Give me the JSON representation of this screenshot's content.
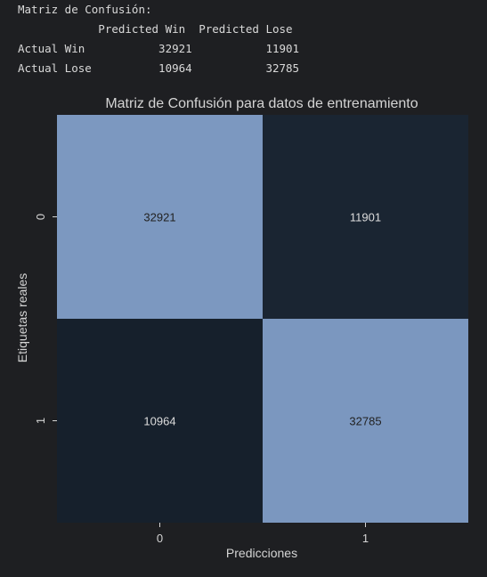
{
  "console": {
    "heading": "Matriz de Confusión:",
    "header_row": "            Predicted Win  Predicted Lose",
    "row_win": "Actual Win           32921           11901",
    "row_lose": "Actual Lose          10964           32785"
  },
  "chart_data": {
    "type": "heatmap",
    "title": "Matriz de Confusión para datos de entrenamiento",
    "xlabel": "Predicciones",
    "ylabel": "Etiquetas reales",
    "x_categories": [
      "0",
      "1"
    ],
    "y_categories": [
      "0",
      "1"
    ],
    "values": [
      [
        32921,
        11901
      ],
      [
        10964,
        32785
      ]
    ],
    "colors": {
      "high": "#7c98c0",
      "low": "#16202c",
      "text": "#d4d4d4",
      "cell_text": "#222222",
      "cell_text_dark": "#dddddd"
    }
  }
}
